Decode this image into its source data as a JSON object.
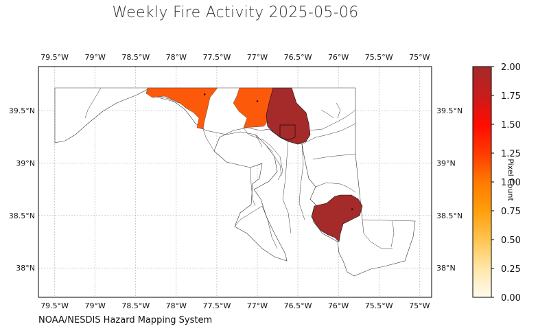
{
  "title": "Weekly Fire Activity 2025-05-06",
  "source": "NOAA/NESDIS Hazard Mapping System",
  "map": {
    "lon_range": [
      -79.7,
      -74.85
    ],
    "lat_range": [
      37.72,
      39.92
    ],
    "lon_ticks": [
      {
        "value": -79.5,
        "label": "79.5°W"
      },
      {
        "value": -79.0,
        "label": "79°W"
      },
      {
        "value": -78.5,
        "label": "78.5°W"
      },
      {
        "value": -78.0,
        "label": "78°W"
      },
      {
        "value": -77.5,
        "label": "77.5°W"
      },
      {
        "value": -77.0,
        "label": "77°W"
      },
      {
        "value": -76.5,
        "label": "76.5°W"
      },
      {
        "value": -76.0,
        "label": "76°W"
      },
      {
        "value": -75.5,
        "label": "75.5°W"
      },
      {
        "value": -75.0,
        "label": "75°W"
      }
    ],
    "lat_ticks": [
      {
        "value": 39.5,
        "label": "39.5°N"
      },
      {
        "value": 39.0,
        "label": "39°N"
      },
      {
        "value": 38.5,
        "label": "38.5°N"
      },
      {
        "value": 38.0,
        "label": "38°N"
      }
    ],
    "grid": true,
    "counties_with_fire": [
      {
        "region": "western-county",
        "pixel_count": 1,
        "color": "#fc5a0a"
      },
      {
        "region": "central-north-county",
        "pixel_count": 1,
        "color": "#fc5a0a"
      },
      {
        "region": "baltimore-county",
        "pixel_count": 2,
        "color": "#a52a2a"
      },
      {
        "region": "eastern-shore-county",
        "pixel_count": 2,
        "color": "#a52a2a"
      }
    ],
    "fire_points": [
      {
        "lon": -77.65,
        "lat": 39.655
      },
      {
        "lon": -77.0,
        "lat": 39.59
      },
      {
        "lon": -75.83,
        "lat": 38.56
      }
    ]
  },
  "colorbar": {
    "label": "Pixel Count",
    "min": 0,
    "max": 2,
    "ticks": [
      "0.00",
      "0.25",
      "0.50",
      "0.75",
      "1.00",
      "1.25",
      "1.50",
      "1.75",
      "2.00"
    ],
    "colors": [
      "#fffbef",
      "#ffe7a8",
      "#ffc450",
      "#ff9f0a",
      "#ff7a00",
      "#ff3a00",
      "#ff0c00",
      "#c81c1c",
      "#a52a2a"
    ]
  }
}
